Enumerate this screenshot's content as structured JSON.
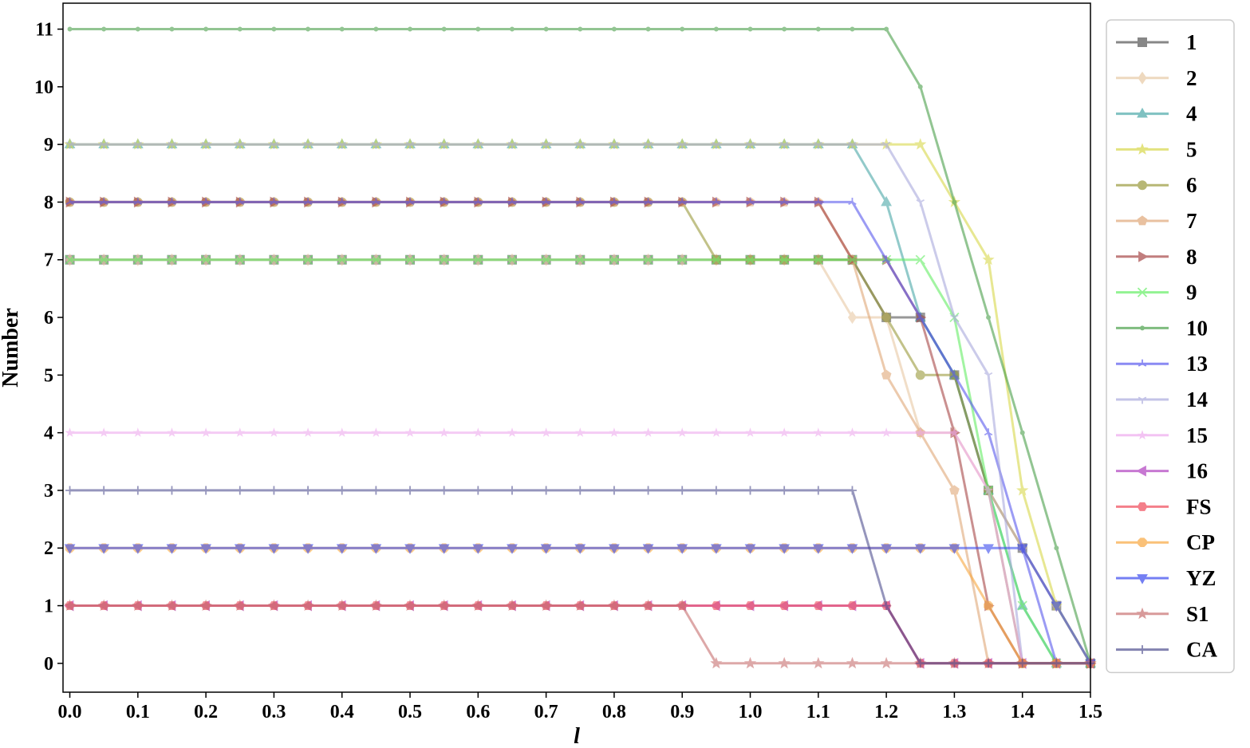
{
  "chart_data": {
    "type": "line",
    "title": "",
    "xlabel": "l",
    "ylabel": "Number",
    "xlim": [
      -0.01,
      1.5
    ],
    "ylim": [
      -0.5,
      11.45
    ],
    "xticks": [
      0.0,
      0.1,
      0.2,
      0.3,
      0.4,
      0.5,
      0.6,
      0.7,
      0.8,
      0.9,
      1.0,
      1.1,
      1.2,
      1.3,
      1.4,
      1.5
    ],
    "xtick_labels": [
      "0.0",
      "0.1",
      "0.2",
      "0.3",
      "0.4",
      "0.5",
      "0.6",
      "0.7",
      "0.8",
      "0.9",
      "1.0",
      "1.1",
      "1.2",
      "1.3",
      "1.4",
      "1.5"
    ],
    "yticks": [
      0,
      1,
      2,
      3,
      4,
      5,
      6,
      7,
      8,
      9,
      10,
      11
    ],
    "ytick_labels": [
      "0",
      "1",
      "2",
      "3",
      "4",
      "5",
      "6",
      "7",
      "8",
      "9",
      "10",
      "11"
    ],
    "grid": false,
    "legend_position": "right",
    "x": [
      0.0,
      0.05,
      0.1,
      0.15,
      0.2,
      0.25,
      0.3,
      0.35,
      0.4,
      0.45,
      0.5,
      0.55,
      0.6,
      0.65,
      0.7,
      0.75,
      0.8,
      0.85,
      0.9,
      0.95,
      1.0,
      1.05,
      1.1,
      1.15,
      1.2,
      1.25,
      1.3,
      1.35,
      1.4,
      1.45,
      1.5
    ],
    "series": [
      {
        "name": "1",
        "color": "#555555",
        "marker": "square",
        "values": [
          7,
          7,
          7,
          7,
          7,
          7,
          7,
          7,
          7,
          7,
          7,
          7,
          7,
          7,
          7,
          7,
          7,
          7,
          7,
          7,
          7,
          7,
          7,
          7,
          6,
          6,
          5,
          3,
          2,
          1,
          0
        ]
      },
      {
        "name": "2",
        "color": "#e8c9a4",
        "marker": "diamond",
        "values": [
          7,
          7,
          7,
          7,
          7,
          7,
          7,
          7,
          7,
          7,
          7,
          7,
          7,
          7,
          7,
          7,
          7,
          7,
          7,
          7,
          7,
          7,
          7,
          6,
          6,
          4,
          4,
          3,
          2,
          1,
          0
        ]
      },
      {
        "name": "4",
        "color": "#4aa8a8",
        "marker": "triangle-up",
        "values": [
          9,
          9,
          9,
          9,
          9,
          9,
          9,
          9,
          9,
          9,
          9,
          9,
          9,
          9,
          9,
          9,
          9,
          9,
          9,
          9,
          9,
          9,
          9,
          9,
          8,
          6,
          5,
          3,
          1,
          0,
          0
        ]
      },
      {
        "name": "5",
        "color": "#d8d84a",
        "marker": "star",
        "values": [
          9,
          9,
          9,
          9,
          9,
          9,
          9,
          9,
          9,
          9,
          9,
          9,
          9,
          9,
          9,
          9,
          9,
          9,
          9,
          9,
          9,
          9,
          9,
          9,
          9,
          9,
          8,
          7,
          3,
          1,
          0
        ]
      },
      {
        "name": "6",
        "color": "#9a9a3c",
        "marker": "circle",
        "values": [
          8,
          8,
          8,
          8,
          8,
          8,
          8,
          8,
          8,
          8,
          8,
          8,
          8,
          8,
          8,
          8,
          8,
          8,
          8,
          7,
          7,
          7,
          7,
          7,
          6,
          5,
          5,
          3,
          0,
          0,
          0
        ]
      },
      {
        "name": "7",
        "color": "#e0a878",
        "marker": "pentagon",
        "values": [
          8,
          8,
          8,
          8,
          8,
          8,
          8,
          8,
          8,
          8,
          8,
          8,
          8,
          8,
          8,
          8,
          8,
          8,
          8,
          8,
          8,
          8,
          8,
          7,
          5,
          4,
          3,
          0,
          0,
          0,
          0
        ]
      },
      {
        "name": "8",
        "color": "#a84848",
        "marker": "triangle-right",
        "values": [
          8,
          8,
          8,
          8,
          8,
          8,
          8,
          8,
          8,
          8,
          8,
          8,
          8,
          8,
          8,
          8,
          8,
          8,
          8,
          8,
          8,
          8,
          8,
          7,
          7,
          6,
          4,
          1,
          0,
          0,
          0
        ]
      },
      {
        "name": "9",
        "color": "#66ee66",
        "marker": "x",
        "values": [
          7,
          7,
          7,
          7,
          7,
          7,
          7,
          7,
          7,
          7,
          7,
          7,
          7,
          7,
          7,
          7,
          7,
          7,
          7,
          7,
          7,
          7,
          7,
          7,
          7,
          7,
          6,
          3,
          1,
          0,
          0
        ]
      },
      {
        "name": "10",
        "color": "#4aa04a",
        "marker": "dot",
        "values": [
          11,
          11,
          11,
          11,
          11,
          11,
          11,
          11,
          11,
          11,
          11,
          11,
          11,
          11,
          11,
          11,
          11,
          11,
          11,
          11,
          11,
          11,
          11,
          11,
          11,
          10,
          8,
          6,
          4,
          2,
          0
        ]
      },
      {
        "name": "13",
        "color": "#5a5aee",
        "marker": "tri",
        "values": [
          8,
          8,
          8,
          8,
          8,
          8,
          8,
          8,
          8,
          8,
          8,
          8,
          8,
          8,
          8,
          8,
          8,
          8,
          8,
          8,
          8,
          8,
          8,
          8,
          7,
          6,
          5,
          4,
          2,
          0,
          0
        ]
      },
      {
        "name": "14",
        "color": "#aaaadd",
        "marker": "tri-down",
        "values": [
          9,
          9,
          9,
          9,
          9,
          9,
          9,
          9,
          9,
          9,
          9,
          9,
          9,
          9,
          9,
          9,
          9,
          9,
          9,
          9,
          9,
          9,
          9,
          9,
          9,
          8,
          6,
          5,
          0,
          0,
          0
        ]
      },
      {
        "name": "15",
        "color": "#eeaaee",
        "marker": "star-small",
        "values": [
          4,
          4,
          4,
          4,
          4,
          4,
          4,
          4,
          4,
          4,
          4,
          4,
          4,
          4,
          4,
          4,
          4,
          4,
          4,
          4,
          4,
          4,
          4,
          4,
          4,
          4,
          4,
          3,
          0,
          0,
          0
        ]
      },
      {
        "name": "16",
        "color": "#b040c0",
        "marker": "triangle-left",
        "values": [
          1,
          1,
          1,
          1,
          1,
          1,
          1,
          1,
          1,
          1,
          1,
          1,
          1,
          1,
          1,
          1,
          1,
          1,
          1,
          1,
          1,
          1,
          1,
          1,
          1,
          0,
          0,
          0,
          0,
          0,
          0
        ]
      },
      {
        "name": "FS",
        "color": "#f04a5a",
        "marker": "hexagon",
        "values": [
          1,
          1,
          1,
          1,
          1,
          1,
          1,
          1,
          1,
          1,
          1,
          1,
          1,
          1,
          1,
          1,
          1,
          1,
          1,
          1,
          1,
          1,
          1,
          1,
          1,
          0,
          0,
          0,
          0,
          0,
          0
        ]
      },
      {
        "name": "CP",
        "color": "#f8a840",
        "marker": "octagon",
        "values": [
          2,
          2,
          2,
          2,
          2,
          2,
          2,
          2,
          2,
          2,
          2,
          2,
          2,
          2,
          2,
          2,
          2,
          2,
          2,
          2,
          2,
          2,
          2,
          2,
          2,
          2,
          2,
          1,
          0,
          0,
          0
        ]
      },
      {
        "name": "YZ",
        "color": "#3a4aee",
        "marker": "triangle-down",
        "values": [
          2,
          2,
          2,
          2,
          2,
          2,
          2,
          2,
          2,
          2,
          2,
          2,
          2,
          2,
          2,
          2,
          2,
          2,
          2,
          2,
          2,
          2,
          2,
          2,
          2,
          2,
          2,
          2,
          2,
          1,
          0
        ]
      },
      {
        "name": "S1",
        "color": "#c87070",
        "marker": "star",
        "values": [
          1,
          1,
          1,
          1,
          1,
          1,
          1,
          1,
          1,
          1,
          1,
          1,
          1,
          1,
          1,
          1,
          1,
          1,
          1,
          0,
          0,
          0,
          0,
          0,
          0,
          0,
          0,
          0,
          0,
          0,
          0
        ]
      },
      {
        "name": "CA",
        "color": "#505090",
        "marker": "plus",
        "values": [
          3,
          3,
          3,
          3,
          3,
          3,
          3,
          3,
          3,
          3,
          3,
          3,
          3,
          3,
          3,
          3,
          3,
          3,
          3,
          3,
          3,
          3,
          3,
          3,
          1,
          0,
          0,
          0,
          0,
          0,
          0
        ]
      }
    ]
  }
}
